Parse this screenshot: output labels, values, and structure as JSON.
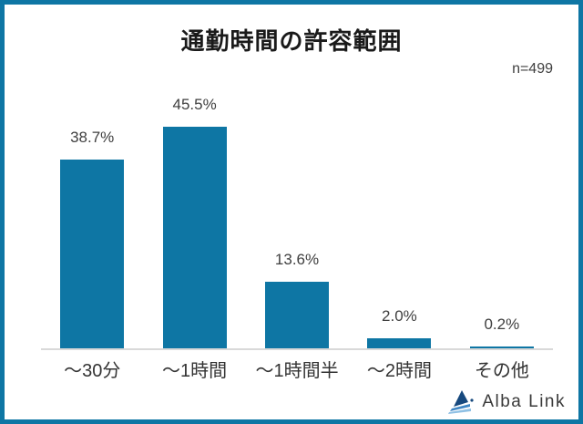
{
  "title": "通勤時間の許容範囲",
  "sample_label": "n=499",
  "chart_data": {
    "type": "bar",
    "title": "通勤時間の許容範囲",
    "categories": [
      "～30分",
      "～1時間",
      "～1時間半",
      "～2時間",
      "その他"
    ],
    "values": [
      38.7,
      45.5,
      13.6,
      2.0,
      0.2
    ],
    "value_labels": [
      "38.7%",
      "45.5%",
      "13.6%",
      "2.0%",
      "0.2%"
    ],
    "xlabel": "",
    "ylabel": "",
    "ylim": [
      0,
      50
    ],
    "grid": false,
    "legend": "none",
    "bar_color": "#0e76a4",
    "axis_line_color": "#d9d9d9"
  },
  "logo": {
    "text": "Alba Link",
    "icon": "alba-link-triangle-logo"
  },
  "colors": {
    "frame_border": "#0e76a4",
    "title_text": "#1a1a1a",
    "label_text": "#3f3f3f",
    "category_text": "#333333"
  }
}
